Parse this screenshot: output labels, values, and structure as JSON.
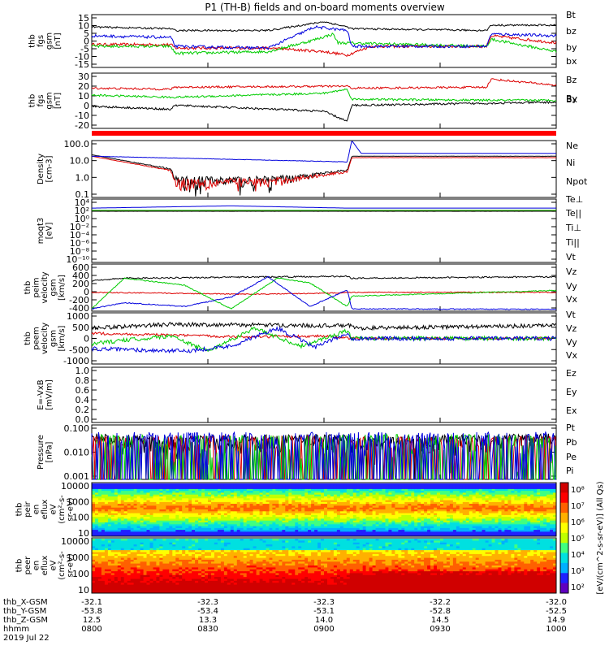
{
  "title": "P1 (TH-B) fields and on-board moments overview",
  "colors": {
    "black": "#000000",
    "red": "#dd0000",
    "green": "#00cc00",
    "blue": "#0000dd"
  },
  "chart_data": [
    {
      "type": "line",
      "id": "fgs",
      "ylabel": [
        "thb",
        "fgs",
        "gsm",
        "[nT]"
      ],
      "yticks": [
        "15",
        "10",
        "5",
        "0",
        "-5",
        "-10",
        "-15"
      ],
      "ylim": [
        -15,
        15
      ],
      "legend": [
        {
          "name": "Bt",
          "color": "#000000"
        },
        {
          "name": "bz",
          "color": "#dd0000"
        },
        {
          "name": "by",
          "color": "#00cc00"
        },
        {
          "name": "bx",
          "color": "#0000dd"
        }
      ]
    },
    {
      "type": "line",
      "id": "fgs_gsm",
      "ylabel": [
        "thb",
        "fgs",
        "gsm",
        "[nT]"
      ],
      "yticks": [
        "30",
        "20",
        "10",
        "0",
        "-10",
        "-20"
      ],
      "ylim": [
        -25,
        30
      ],
      "legend": [
        {
          "name": "Bz",
          "color": "#dd0000"
        },
        {
          "name": "By",
          "color": "#00cc00"
        },
        {
          "name": "Bx",
          "color": "#000000"
        }
      ]
    },
    {
      "type": "line",
      "id": "density",
      "ylabel": [
        "Density",
        "[cm-3]"
      ],
      "yticks": [
        "100.0",
        "10.0",
        "1.0",
        "0.1"
      ],
      "ylim": [
        0.02,
        200
      ],
      "scale": "log",
      "legend": [
        {
          "name": "Ne",
          "color": "#dd0000"
        },
        {
          "name": "Ni",
          "color": "#000000"
        },
        {
          "name": "Npot",
          "color": "#0000dd"
        }
      ]
    },
    {
      "type": "line",
      "id": "temp",
      "ylabel": [
        "moqt3",
        "[eV]"
      ],
      "yticks": [
        "10⁴",
        "10²",
        "10⁰",
        "10⁻²",
        "10⁻⁴",
        "10⁻⁶",
        "10⁻⁸",
        "10⁻¹⁰"
      ],
      "ylim": [
        1e-10,
        10000.0
      ],
      "scale": "log",
      "legend": [
        {
          "name": "Te⊥",
          "color": "#dd0000"
        },
        {
          "name": "Te||",
          "color": "#000000"
        },
        {
          "name": "Ti⊥",
          "color": "#0000dd"
        },
        {
          "name": "Ti||",
          "color": "#00cc00"
        }
      ]
    },
    {
      "type": "line",
      "id": "peim",
      "ylabel": [
        "thb",
        "peim",
        "velocity",
        "gsm",
        "[km/s]"
      ],
      "yticks": [
        "600",
        "400",
        "200",
        "0",
        "-200",
        "-400"
      ],
      "ylim": [
        -400,
        600
      ],
      "legend": [
        {
          "name": "Vt",
          "color": "#000000"
        },
        {
          "name": "Vz",
          "color": "#dd0000"
        },
        {
          "name": "Vy",
          "color": "#00cc00"
        },
        {
          "name": "Vx",
          "color": "#0000dd"
        }
      ]
    },
    {
      "type": "line",
      "id": "peem",
      "ylabel": [
        "thb",
        "peem",
        "velocity",
        "gsm",
        "[km/s]"
      ],
      "yticks": [
        "1000",
        "500",
        "0",
        "-500",
        "-1000"
      ],
      "ylim": [
        -1000,
        1000
      ],
      "legend": [
        {
          "name": "Vt",
          "color": "#000000"
        },
        {
          "name": "Vz",
          "color": "#dd0000"
        },
        {
          "name": "Vy",
          "color": "#00cc00"
        },
        {
          "name": "Vx",
          "color": "#0000dd"
        }
      ]
    },
    {
      "type": "line",
      "id": "efield",
      "ylabel": [
        "E=-VxB",
        "[mV/m]"
      ],
      "yticks": [
        "1.0",
        "0.8",
        "0.6",
        "0.4",
        "0.2",
        "0.0"
      ],
      "ylim": [
        0,
        1
      ],
      "legend": [
        {
          "name": "Ez",
          "color": "#dd0000"
        },
        {
          "name": "Ey",
          "color": "#00cc00"
        },
        {
          "name": "Ex",
          "color": "#0000dd"
        }
      ]
    },
    {
      "type": "line",
      "id": "pressure",
      "ylabel": [
        "Pressure",
        "[nPa]"
      ],
      "yticks": [
        "0.100",
        "0.010",
        "0.001"
      ],
      "ylim": [
        0.0003,
        0.4
      ],
      "scale": "log",
      "legend": [
        {
          "name": "Pt",
          "color": "#000000"
        },
        {
          "name": "Pb",
          "color": "#dd0000"
        },
        {
          "name": "Pe",
          "color": "#00cc00"
        },
        {
          "name": "Pi",
          "color": "#0000dd"
        }
      ]
    },
    {
      "type": "heatmap",
      "id": "peir",
      "ylabel": [
        "thb",
        "peir",
        "en",
        "eflux",
        "eV",
        "(cm²-s-",
        "sr-eV)"
      ],
      "yticks": [
        "10000",
        "1000",
        "100",
        "10"
      ]
    },
    {
      "type": "heatmap",
      "id": "peer",
      "ylabel": [
        "thb",
        "peer",
        "en",
        "eflux",
        "eV",
        "(cm²-s-",
        "sr-eV)"
      ],
      "yticks": [
        "10000",
        "1000",
        "100",
        "10"
      ]
    }
  ],
  "colorbar": {
    "ticks": [
      "10⁸",
      "10⁷",
      "10⁶",
      "10⁵",
      "10⁴",
      "10³",
      "10²"
    ],
    "label": "[eV/(cm^2-s-sr-eV)] (All Qs)"
  },
  "xaxis": {
    "rows": [
      {
        "label": "thb_X-GSM",
        "values": [
          "-32.1",
          "-32.3",
          "-32.3",
          "-32.2",
          "-32.0"
        ]
      },
      {
        "label": "thb_Y-GSM",
        "values": [
          "-53.8",
          "-53.4",
          "-53.1",
          "-52.8",
          "-52.5"
        ]
      },
      {
        "label": "thb_Z-GSM",
        "values": [
          "12.5",
          "13.3",
          "14.0",
          "14.5",
          "14.9"
        ]
      },
      {
        "label": "hhmm",
        "values": [
          "0800",
          "0830",
          "0900",
          "0930",
          "1000"
        ]
      }
    ],
    "date": "2019 Jul 22"
  }
}
